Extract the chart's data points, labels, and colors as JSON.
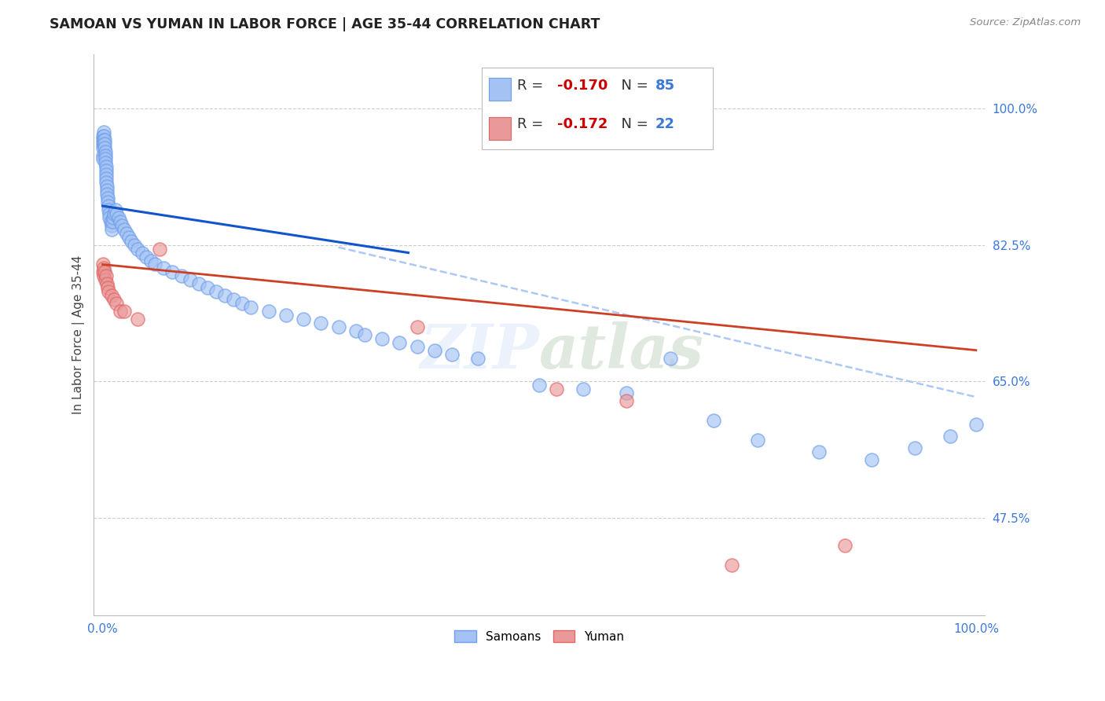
{
  "title": "SAMOAN VS YUMAN IN LABOR FORCE | AGE 35-44 CORRELATION CHART",
  "source": "Source: ZipAtlas.com",
  "ylabel": "In Labor Force | Age 35-44",
  "xlim": [
    0.0,
    1.0
  ],
  "ylim": [
    0.35,
    1.07
  ],
  "y_ticks_right": [
    1.0,
    0.825,
    0.65,
    0.475
  ],
  "y_tick_labels_right": [
    "100.0%",
    "82.5%",
    "65.0%",
    "47.5%"
  ],
  "watermark": "ZIPatlas",
  "blue_color": "#a4c2f4",
  "blue_edge_color": "#6d9eeb",
  "pink_color": "#ea9999",
  "pink_edge_color": "#e06666",
  "blue_line_color": "#1155cc",
  "pink_line_color": "#cc4125",
  "dashed_line_color": "#a4c2f4",
  "samoans_x": [
    0.0,
    0.0,
    0.0,
    0.0,
    0.0,
    0.0,
    0.001,
    0.001,
    0.001,
    0.001,
    0.002,
    0.002,
    0.002,
    0.003,
    0.003,
    0.003,
    0.003,
    0.004,
    0.004,
    0.004,
    0.004,
    0.004,
    0.005,
    0.005,
    0.005,
    0.006,
    0.006,
    0.007,
    0.007,
    0.008,
    0.008,
    0.009,
    0.01,
    0.01,
    0.011,
    0.012,
    0.013,
    0.015,
    0.016,
    0.018,
    0.02,
    0.022,
    0.025,
    0.027,
    0.03,
    0.033,
    0.036,
    0.04,
    0.045,
    0.05,
    0.055,
    0.06,
    0.07,
    0.08,
    0.09,
    0.1,
    0.11,
    0.12,
    0.13,
    0.14,
    0.15,
    0.16,
    0.17,
    0.19,
    0.21,
    0.23,
    0.25,
    0.27,
    0.29,
    0.3,
    0.32,
    0.34,
    0.36,
    0.38,
    0.4,
    0.43,
    0.5,
    0.55,
    0.6,
    0.65,
    0.7,
    0.75,
    0.82,
    0.88,
    0.93,
    0.97,
    1.0
  ],
  "samoans_y": [
    0.965,
    0.96,
    0.955,
    0.95,
    0.94,
    0.935,
    0.97,
    0.965,
    0.96,
    0.955,
    0.96,
    0.955,
    0.95,
    0.945,
    0.94,
    0.935,
    0.93,
    0.925,
    0.92,
    0.915,
    0.91,
    0.905,
    0.9,
    0.895,
    0.89,
    0.885,
    0.88,
    0.875,
    0.87,
    0.865,
    0.86,
    0.855,
    0.85,
    0.845,
    0.855,
    0.86,
    0.865,
    0.87,
    0.865,
    0.86,
    0.855,
    0.85,
    0.845,
    0.84,
    0.835,
    0.83,
    0.825,
    0.82,
    0.815,
    0.81,
    0.805,
    0.8,
    0.795,
    0.79,
    0.785,
    0.78,
    0.775,
    0.77,
    0.765,
    0.76,
    0.755,
    0.75,
    0.745,
    0.74,
    0.735,
    0.73,
    0.725,
    0.72,
    0.715,
    0.71,
    0.705,
    0.7,
    0.695,
    0.69,
    0.685,
    0.68,
    0.645,
    0.64,
    0.635,
    0.68,
    0.6,
    0.575,
    0.56,
    0.55,
    0.565,
    0.58,
    0.595
  ],
  "yuman_x": [
    0.0,
    0.0,
    0.001,
    0.001,
    0.002,
    0.003,
    0.004,
    0.005,
    0.006,
    0.007,
    0.01,
    0.013,
    0.016,
    0.02,
    0.025,
    0.04,
    0.065,
    0.36,
    0.52,
    0.6,
    0.72,
    0.85
  ],
  "yuman_y": [
    0.8,
    0.79,
    0.795,
    0.785,
    0.79,
    0.78,
    0.785,
    0.775,
    0.77,
    0.765,
    0.76,
    0.755,
    0.75,
    0.74,
    0.74,
    0.73,
    0.82,
    0.72,
    0.64,
    0.625,
    0.415,
    0.44
  ],
  "blue_trend_x0": 0.0,
  "blue_trend_y0": 0.875,
  "blue_trend_x1": 0.35,
  "blue_trend_y1": 0.815,
  "pink_trend_x0": 0.0,
  "pink_trend_y0": 0.8,
  "pink_trend_x1": 1.0,
  "pink_trend_y1": 0.69,
  "dashed_trend_x0": 0.27,
  "dashed_trend_y0": 0.822,
  "dashed_trend_x1": 1.0,
  "dashed_trend_y1": 0.63
}
